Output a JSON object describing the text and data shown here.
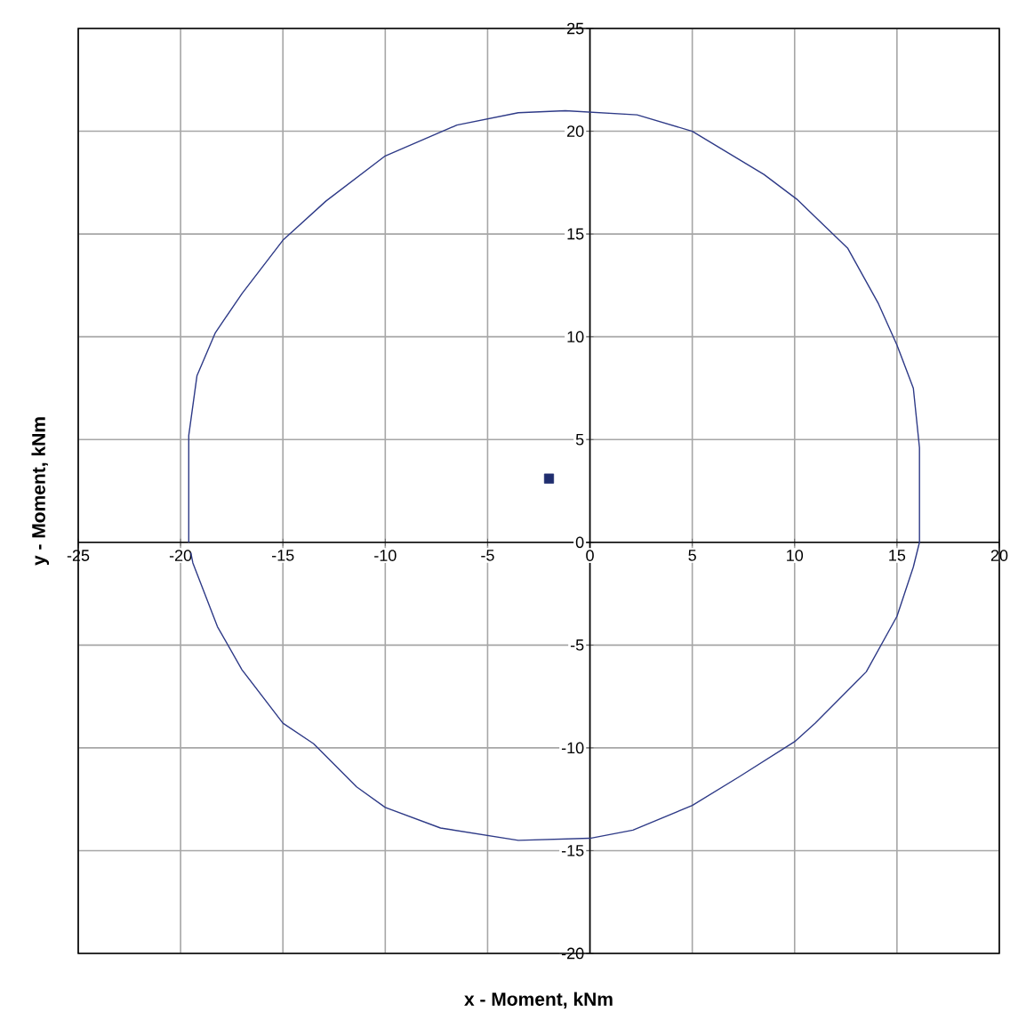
{
  "chart_data": {
    "type": "line",
    "xlabel": "x - Moment, kNm",
    "ylabel": "y - Moment, kNm",
    "xlim": [
      -25,
      20
    ],
    "ylim": [
      -20,
      25
    ],
    "xticks": [
      -25,
      -20,
      -15,
      -10,
      -5,
      0,
      5,
      10,
      15,
      20
    ],
    "yticks": [
      -20,
      -15,
      -10,
      -5,
      0,
      5,
      10,
      15,
      20,
      25
    ],
    "grid": true,
    "series": [
      {
        "color": "#2e3a87",
        "marker": "none",
        "x": [
          -19.6,
          -19.6,
          -19.2,
          -18.3,
          -17.0,
          -15.0,
          -12.9,
          -10.0,
          -6.5,
          -3.5,
          -1.2,
          2.3,
          5.0,
          8.5,
          10.1,
          12.6,
          14.1,
          15.0,
          15.8,
          16.1,
          16.1,
          15.8,
          15.0,
          13.5,
          11.0,
          10.0,
          7.3,
          5.0,
          2.1,
          0.0,
          -3.5,
          -7.3,
          -10.0,
          -11.4,
          -13.5,
          -15.0,
          -17.0,
          -18.2,
          -19.4,
          -19.5
        ],
        "values": [
          0.0,
          5.2,
          8.1,
          10.2,
          12.1,
          14.7,
          16.6,
          18.8,
          20.3,
          20.9,
          21.0,
          20.8,
          20.0,
          17.9,
          16.7,
          14.3,
          11.6,
          9.6,
          7.5,
          4.6,
          0.0,
          -1.2,
          -3.6,
          -6.3,
          -8.8,
          -9.7,
          -11.4,
          -12.8,
          -14.0,
          -14.4,
          -14.5,
          -13.9,
          -12.9,
          -11.9,
          -9.8,
          -8.8,
          -6.2,
          -4.1,
          -1.0,
          -0.5
        ]
      },
      {
        "type": "scatter",
        "color": "#1f2d6e",
        "marker": "square",
        "x": [
          -2.0
        ],
        "values": [
          3.1
        ]
      }
    ]
  }
}
